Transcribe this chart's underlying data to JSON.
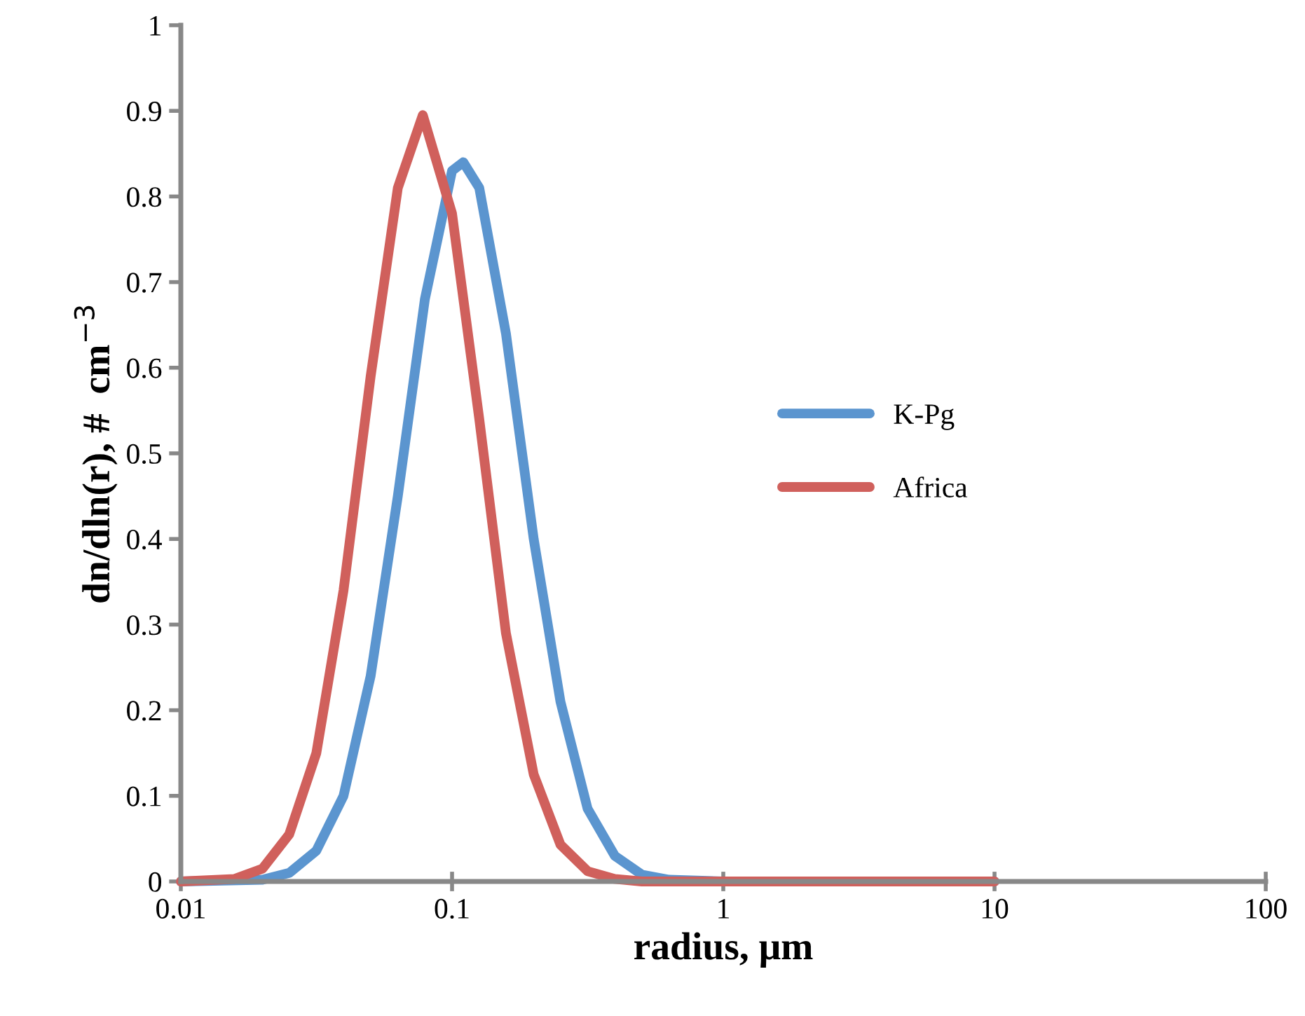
{
  "chart_data": {
    "type": "line",
    "xlabel": "radius, μm",
    "ylabel": "dn/dln(r), #  cm$^{−3}$",
    "log": "x",
    "xlim": [
      0.01,
      100
    ],
    "xticks": [
      0.01,
      0.1,
      1,
      10,
      100
    ],
    "ylim": [
      0,
      1
    ],
    "yticks": [
      0,
      0.1,
      0.2,
      0.3,
      0.4,
      0.5,
      0.6,
      0.7,
      0.8,
      0.9,
      1
    ],
    "grid": false,
    "legend": "right",
    "marker": "none",
    "line_style": "solid",
    "series": [
      {
        "name": "K-Pg",
        "color": "#5b95cf",
        "x": [
          0.01,
          0.02,
          0.0251,
          0.0316,
          0.0398,
          0.0501,
          0.0631,
          0.0794,
          0.1,
          0.11,
          0.126,
          0.158,
          0.2,
          0.251,
          0.316,
          0.398,
          0.501,
          0.631,
          1,
          10
        ],
        "values": [
          0,
          0.002,
          0.01,
          0.036,
          0.1,
          0.24,
          0.45,
          0.68,
          0.83,
          0.84,
          0.81,
          0.64,
          0.4,
          0.21,
          0.085,
          0.03,
          0.008,
          0.002,
          0,
          0
        ]
      },
      {
        "name": "Africa",
        "color": "#d0605c",
        "x": [
          0.01,
          0.0158,
          0.02,
          0.0251,
          0.0316,
          0.0398,
          0.0501,
          0.0631,
          0.078,
          0.1,
          0.126,
          0.158,
          0.2,
          0.251,
          0.316,
          0.398,
          0.501,
          1,
          10
        ],
        "values": [
          0,
          0.003,
          0.015,
          0.055,
          0.15,
          0.34,
          0.59,
          0.81,
          0.895,
          0.78,
          0.54,
          0.29,
          0.125,
          0.043,
          0.012,
          0.003,
          0,
          0,
          0
        ]
      }
    ]
  }
}
